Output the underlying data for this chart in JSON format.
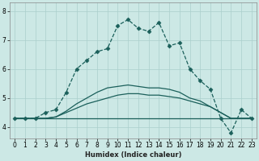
{
  "title": "",
  "xlabel": "Humidex (Indice chaleur)",
  "background_color": "#cce8e5",
  "grid_color": "#aacfcc",
  "line_color": "#1a5f5a",
  "xlim": [
    -0.5,
    23.5
  ],
  "ylim": [
    3.6,
    8.3
  ],
  "yticks": [
    4,
    5,
    6,
    7,
    8
  ],
  "xticks": [
    0,
    1,
    2,
    3,
    4,
    5,
    6,
    7,
    8,
    9,
    10,
    11,
    12,
    13,
    14,
    15,
    16,
    17,
    18,
    19,
    20,
    21,
    22,
    23
  ],
  "series": [
    {
      "y": [
        4.3,
        4.3,
        4.3,
        4.5,
        4.6,
        5.2,
        6.0,
        6.3,
        6.6,
        6.7,
        7.5,
        7.7,
        7.4,
        7.3,
        7.6,
        6.8,
        6.9,
        6.0,
        5.6,
        5.3,
        4.3,
        3.8,
        4.6,
        4.3
      ],
      "linestyle": "--",
      "marker": "D",
      "markersize": 2.5,
      "linewidth": 0.9
    },
    {
      "y": [
        4.3,
        4.3,
        4.3,
        4.3,
        4.3,
        4.3,
        4.3,
        4.3,
        4.3,
        4.3,
        4.3,
        4.3,
        4.3,
        4.3,
        4.3,
        4.3,
        4.3,
        4.3,
        4.3,
        4.3,
        4.3,
        4.3,
        4.3,
        4.3
      ],
      "linestyle": "-",
      "marker": null,
      "markersize": 0,
      "linewidth": 0.9
    },
    {
      "y": [
        4.3,
        4.3,
        4.3,
        4.3,
        4.35,
        4.5,
        4.65,
        4.8,
        4.9,
        5.0,
        5.1,
        5.15,
        5.15,
        5.1,
        5.1,
        5.05,
        5.0,
        4.9,
        4.8,
        4.7,
        4.5,
        4.3,
        4.3,
        4.3
      ],
      "linestyle": "-",
      "marker": null,
      "markersize": 0,
      "linewidth": 0.9
    },
    {
      "y": [
        4.3,
        4.3,
        4.3,
        4.3,
        4.35,
        4.55,
        4.8,
        5.0,
        5.2,
        5.35,
        5.4,
        5.45,
        5.4,
        5.35,
        5.35,
        5.3,
        5.2,
        5.0,
        4.9,
        4.7,
        4.5,
        4.3,
        4.3,
        4.3
      ],
      "linestyle": "-",
      "marker": null,
      "markersize": 0,
      "linewidth": 0.9
    }
  ]
}
